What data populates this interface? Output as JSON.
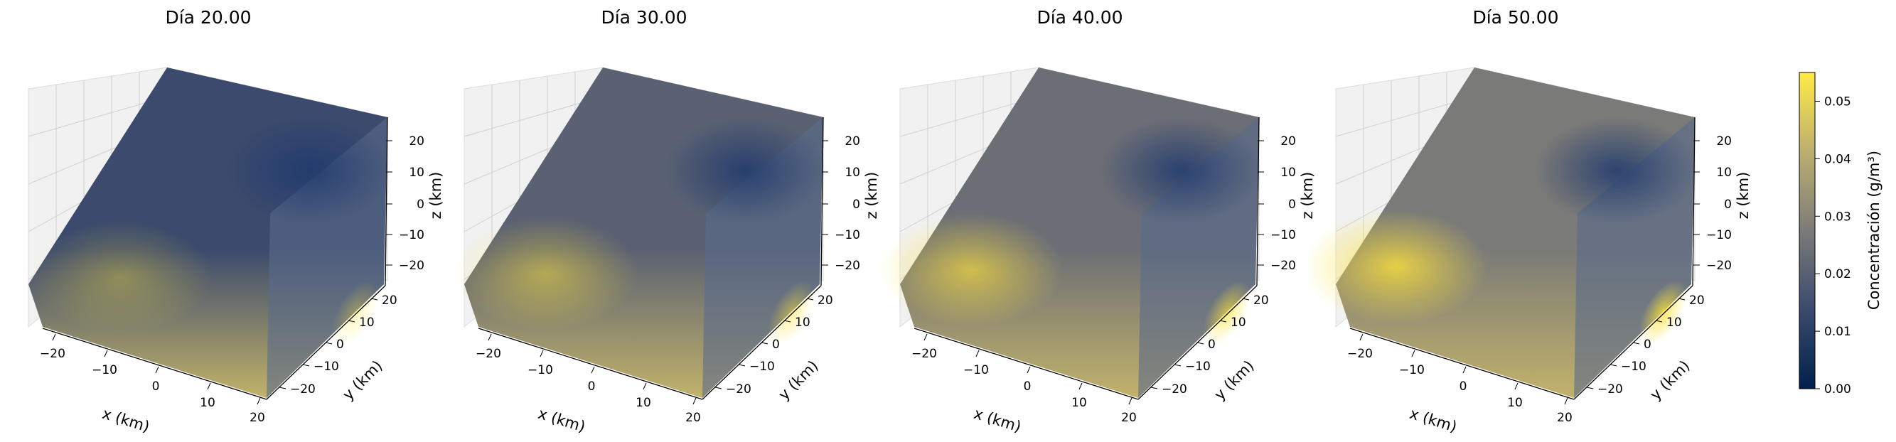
{
  "chart_data": [
    {
      "type": "3d-volume",
      "title": "Día 20.00",
      "xlabel": "x (km)",
      "ylabel": "y (km)",
      "zlabel": "z (km)",
      "xticks": [
        "−20",
        "−10",
        "0",
        "10",
        "20"
      ],
      "yticks": [
        "−20",
        "−10",
        "0",
        "10",
        "20"
      ],
      "zticks": [
        "20",
        "10",
        "0",
        "−10",
        "−20"
      ],
      "xlim": [
        -25,
        25
      ],
      "ylim": [
        -25,
        25
      ],
      "zlim": [
        -25,
        25
      ],
      "blobs": [
        {
          "x": -10,
          "y": -15,
          "value": 0.036
        },
        {
          "x": 18,
          "y": -20,
          "value": 0.024
        },
        {
          "x": 12,
          "y": 10,
          "value": 0.004
        }
      ]
    },
    {
      "type": "3d-volume",
      "title": "Día 30.00",
      "xlabel": "x (km)",
      "ylabel": "y (km)",
      "zlabel": "z (km)",
      "xticks": [
        "−20",
        "−10",
        "0",
        "10",
        "20"
      ],
      "yticks": [
        "−20",
        "−10",
        "0",
        "10",
        "20"
      ],
      "zticks": [
        "20",
        "10",
        "0",
        "−10",
        "−20"
      ],
      "xlim": [
        -25,
        25
      ],
      "ylim": [
        -25,
        25
      ],
      "zlim": [
        -25,
        25
      ],
      "blobs": [
        {
          "x": -14,
          "y": -12,
          "value": 0.044
        },
        {
          "x": 18,
          "y": -20,
          "value": 0.036
        },
        {
          "x": 10,
          "y": 8,
          "value": 0.012
        }
      ]
    },
    {
      "type": "3d-volume",
      "title": "Día 40.00",
      "xlabel": "x (km)",
      "ylabel": "y (km)",
      "zlabel": "z (km)",
      "xticks": [
        "−20",
        "−10",
        "0",
        "10",
        "20"
      ],
      "yticks": [
        "−20",
        "−10",
        "0",
        "10",
        "20"
      ],
      "zticks": [
        "20",
        "10",
        "0",
        "−10",
        "−20"
      ],
      "xlim": [
        -25,
        25
      ],
      "ylim": [
        -25,
        25
      ],
      "zlim": [
        -25,
        25
      ],
      "blobs": [
        {
          "x": -16,
          "y": -10,
          "value": 0.05
        },
        {
          "x": 19,
          "y": -21,
          "value": 0.045
        },
        {
          "x": 8,
          "y": 4,
          "value": 0.012
        }
      ]
    },
    {
      "type": "3d-volume",
      "title": "Día 50.00",
      "xlabel": "x (km)",
      "ylabel": "y (km)",
      "zlabel": "z (km)",
      "xticks": [
        "−20",
        "−10",
        "0",
        "10",
        "20"
      ],
      "yticks": [
        "−20",
        "−10",
        "0",
        "10",
        "20"
      ],
      "zticks": [
        "20",
        "10",
        "0",
        "−10",
        "−20"
      ],
      "xlim": [
        -25,
        25
      ],
      "ylim": [
        -25,
        25
      ],
      "zlim": [
        -25,
        25
      ],
      "blobs": [
        {
          "x": -18,
          "y": -8,
          "value": 0.055
        },
        {
          "x": 20,
          "y": -22,
          "value": 0.04
        },
        {
          "x": 6,
          "y": 2,
          "value": 0.01
        }
      ]
    }
  ],
  "colorbar": {
    "label": "Concentración (g/m³)",
    "ticks": [
      "0.00",
      "0.01",
      "0.02",
      "0.03",
      "0.04",
      "0.05"
    ],
    "range": [
      0,
      0.055
    ],
    "colormap": "cividis",
    "colors": [
      "#00204d",
      "#3b4a6d",
      "#7c7b78",
      "#bcaf6f",
      "#ffea46"
    ]
  }
}
